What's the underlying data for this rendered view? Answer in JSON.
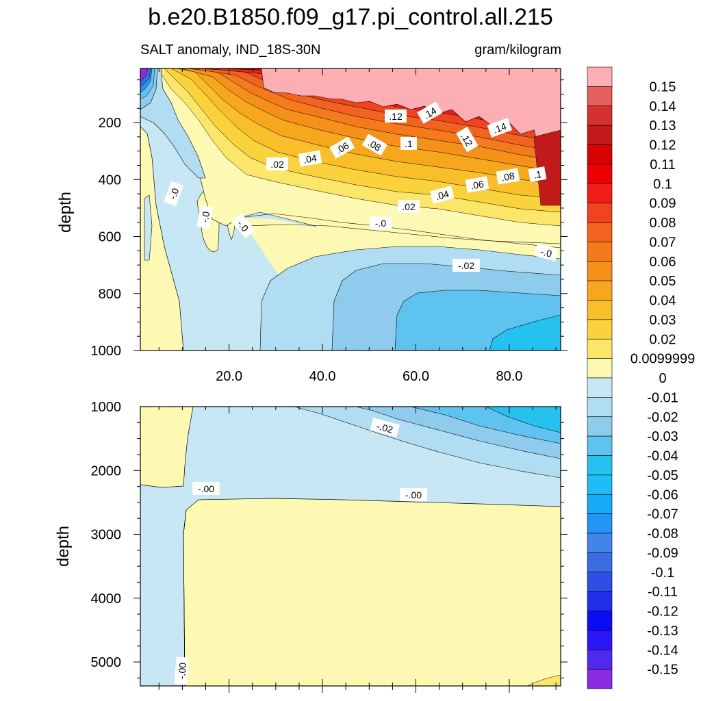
{
  "title": "b.e20.B1850.f09_g17.pi_control.all.215",
  "left_subtitle": "SALT anomaly, IND_18S-30N",
  "right_subtitle": "gram/kilogram",
  "colors": {
    "neg": [
      "#8a2be2",
      "#5028f0",
      "#2a17f3",
      "#0a0cf5",
      "#1f2fec",
      "#2e4fe6",
      "#3a6ee0",
      "#3f86e8",
      "#2495f5",
      "#16aaf7",
      "#1ebdf5",
      "#25c2f0",
      "#5fc3f0",
      "#8ecbec",
      "#b0ddf1",
      "#c7e7f5"
    ],
    "pos": [
      "#fef9b2",
      "#fbe66a",
      "#fad23c",
      "#f9bf2a",
      "#f7a71b",
      "#f5901b",
      "#f47a1c",
      "#f26320",
      "#f1431f",
      "#f01e16",
      "#ee0000",
      "#d80000",
      "#c21a1a",
      "#d73030",
      "#e66060",
      "#fbafb4"
    ]
  },
  "chart_data": [
    {
      "type": "contour",
      "panel": "upper",
      "xlim": [
        1,
        91
      ],
      "ylim": [
        1000,
        10
      ],
      "ylabel": "depth",
      "x_ticks": [
        "20.0",
        "40.0",
        "60.0",
        "80.0"
      ],
      "y_ticks": [
        "200",
        "400",
        "600",
        "800",
        "1000"
      ],
      "contour_labels": [
        ".12",
        ".14",
        ".06",
        ".08",
        ".1",
        ".12",
        ".14",
        ".02",
        ".04",
        "-.0",
        "-.0",
        "-.0",
        ".06",
        ".08",
        ".1",
        ".04",
        ".02",
        "-.0",
        "-.02",
        "-.0"
      ]
    },
    {
      "type": "contour",
      "panel": "lower",
      "xlim": [
        1,
        91
      ],
      "ylim": [
        5375,
        1000
      ],
      "ylabel": "depth",
      "y_ticks": [
        "1000",
        "2000",
        "3000",
        "4000",
        "5000"
      ],
      "contour_labels": [
        "-.02",
        "-.00",
        "-.00",
        "-.00"
      ]
    }
  ],
  "colorbar": {
    "labels": [
      "0.15",
      "0.14",
      "0.13",
      "0.12",
      "0.11",
      "0.1",
      "0.09",
      "0.08",
      "0.07",
      "0.06",
      "0.05",
      "0.04",
      "0.03",
      "0.02",
      "0.0099999",
      "0",
      "-0.01",
      "-0.02",
      "-0.03",
      "-0.04",
      "-0.05",
      "-0.06",
      "-0.07",
      "-0.08",
      "-0.09",
      "-0.1",
      "-0.11",
      "-0.12",
      "-0.13",
      "-0.14",
      "-0.15"
    ]
  }
}
